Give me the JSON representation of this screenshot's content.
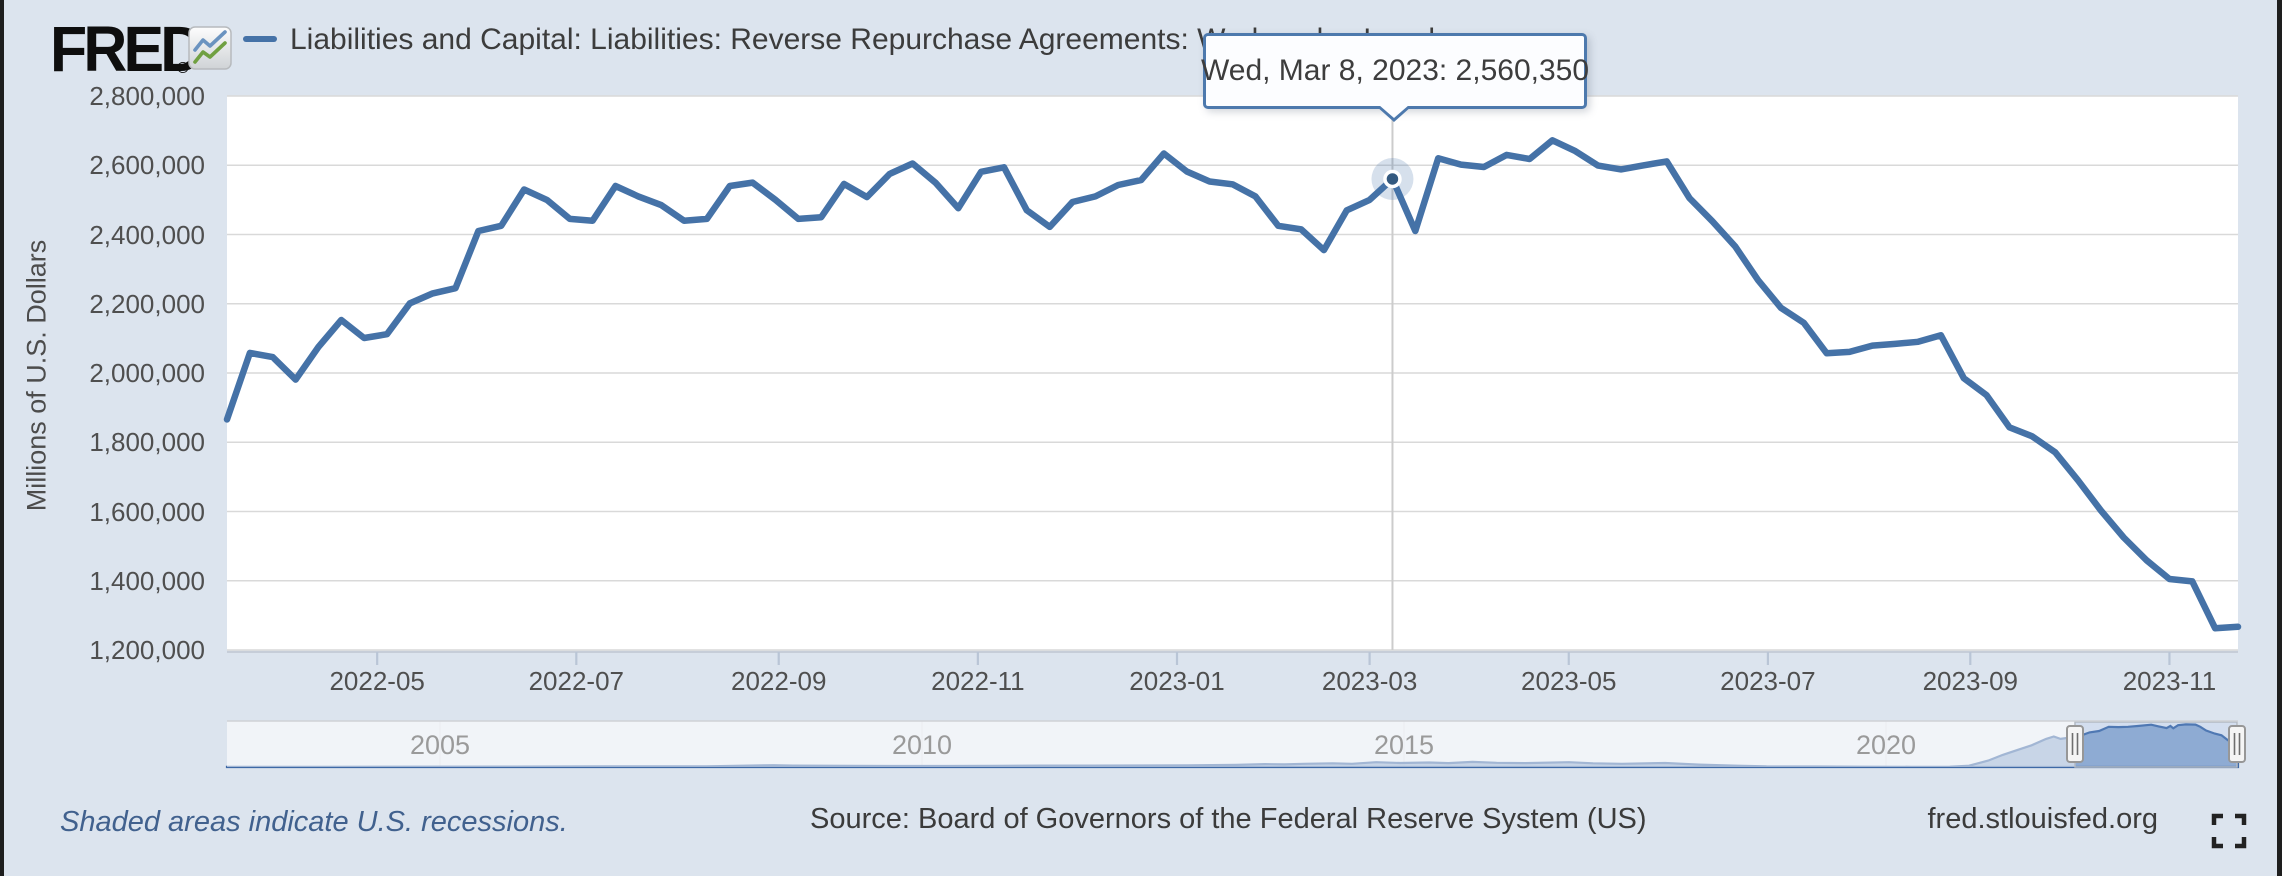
{
  "header": {
    "logo_text": "FRED",
    "logo_registered": "®",
    "series_legend": {
      "label": "Liabilities and Capital: Liabilities: Reverse Repurchase Agreements: Wednesday Level",
      "color": "#4572a7"
    }
  },
  "tooltip": {
    "label": "Wed, Mar 8, 2023: 2,560,350",
    "date": "Wed, Mar 8, 2023",
    "value": "2,560,350"
  },
  "axes": {
    "y_title": "Millions of U.S. Dollars",
    "y_ticks": [
      "2,800,000",
      "2,600,000",
      "2,400,000",
      "2,200,000",
      "2,000,000",
      "1,800,000",
      "1,600,000",
      "1,400,000",
      "1,200,000"
    ],
    "x_ticks": [
      "2022-05",
      "2022-07",
      "2022-09",
      "2022-11",
      "2023-01",
      "2023-03",
      "2023-05",
      "2023-07",
      "2023-09",
      "2023-11"
    ],
    "navigator_years": [
      "2005",
      "2010",
      "2015",
      "2020"
    ]
  },
  "footer": {
    "recessions_note": "Shaded areas indicate U.S. recessions.",
    "source": "Source: Board of Governors of the Federal Reserve System (US)",
    "site": "fred.stlouisfed.org"
  },
  "colors": {
    "page_background": "#dce4ee",
    "plot_background": "#ffffff",
    "series_line": "#4572a7",
    "gridline": "#d9d9d9",
    "axis_line": "#c6cdd8",
    "tick_mark": "#b9c5d6",
    "crosshair": "#cccccc",
    "tooltip_border": "#4d79ad",
    "navigator_area": "#7b9cc7",
    "navigator_line": "#3e69a6",
    "selection_tint": "rgba(132,167,220,0.25)",
    "handle_fill": "#f5f5f5",
    "recessions_note_text": "#41618e"
  },
  "chart_data": {
    "type": "line",
    "title": "Liabilities and Capital: Liabilities: Reverse Repurchase Agreements: Wednesday Level",
    "ylabel": "Millions of U.S. Dollars",
    "ylim": [
      1200000,
      2800000
    ],
    "grid": true,
    "frequency": "weekly, Wednesday level",
    "units": "Millions of U.S. Dollars",
    "selected_point": {
      "date": "2023-03-08",
      "label": "Wed, Mar 8, 2023",
      "value": 2560350
    },
    "series": [
      {
        "name": "Liabilities and Capital: Liabilities: Reverse Repurchase Agreements: Wednesday Level",
        "dates": [
          "2022-03-16",
          "2022-03-23",
          "2022-03-30",
          "2022-04-06",
          "2022-04-13",
          "2022-04-20",
          "2022-04-27",
          "2022-05-04",
          "2022-05-11",
          "2022-05-18",
          "2022-05-25",
          "2022-06-01",
          "2022-06-08",
          "2022-06-15",
          "2022-06-22",
          "2022-06-29",
          "2022-07-06",
          "2022-07-13",
          "2022-07-20",
          "2022-07-27",
          "2022-08-03",
          "2022-08-10",
          "2022-08-17",
          "2022-08-24",
          "2022-08-31",
          "2022-09-07",
          "2022-09-14",
          "2022-09-21",
          "2022-09-28",
          "2022-10-05",
          "2022-10-12",
          "2022-10-19",
          "2022-10-26",
          "2022-11-02",
          "2022-11-09",
          "2022-11-16",
          "2022-11-23",
          "2022-11-30",
          "2022-12-07",
          "2022-12-14",
          "2022-12-21",
          "2022-12-28",
          "2023-01-04",
          "2023-01-11",
          "2023-01-18",
          "2023-01-25",
          "2023-02-01",
          "2023-02-08",
          "2023-02-15",
          "2023-02-22",
          "2023-03-01",
          "2023-03-08",
          "2023-03-15",
          "2023-03-22",
          "2023-03-29",
          "2023-04-05",
          "2023-04-12",
          "2023-04-19",
          "2023-04-26",
          "2023-05-03",
          "2023-05-10",
          "2023-05-17",
          "2023-05-24",
          "2023-05-31",
          "2023-06-07",
          "2023-06-14",
          "2023-06-21",
          "2023-06-28",
          "2023-07-05",
          "2023-07-12",
          "2023-07-19",
          "2023-07-26",
          "2023-08-02",
          "2023-08-09",
          "2023-08-16",
          "2023-08-23",
          "2023-08-30",
          "2023-09-06",
          "2023-09-13",
          "2023-09-20",
          "2023-09-27",
          "2023-10-04",
          "2023-10-11",
          "2023-10-18",
          "2023-10-25",
          "2023-11-01",
          "2023-11-08",
          "2023-11-15",
          "2023-11-22"
        ],
        "values": [
          1866000,
          2058000,
          2046000,
          1981000,
          2075000,
          2153000,
          2101000,
          2112000,
          2201000,
          2230000,
          2245000,
          2410000,
          2425000,
          2530000,
          2500000,
          2445000,
          2440000,
          2540000,
          2510000,
          2485000,
          2440000,
          2445000,
          2540000,
          2550000,
          2500000,
          2445000,
          2450000,
          2546000,
          2508000,
          2575000,
          2605000,
          2550000,
          2476000,
          2581000,
          2594000,
          2470000,
          2422000,
          2494000,
          2510000,
          2543000,
          2557000,
          2634000,
          2582000,
          2553000,
          2545000,
          2510000,
          2425000,
          2415000,
          2355000,
          2470000,
          2500000,
          2560350,
          2410000,
          2620000,
          2602000,
          2595000,
          2630000,
          2618000,
          2672000,
          2641000,
          2599000,
          2588000,
          2600000,
          2611000,
          2505000,
          2438000,
          2365000,
          2268000,
          2188000,
          2145000,
          2057000,
          2061000,
          2079000,
          2084000,
          2090000,
          2109000,
          1985000,
          1936000,
          1843000,
          1817000,
          1771000,
          1690000,
          1603000,
          1525000,
          1459000,
          1405000,
          1398000,
          1263000,
          1267000
        ]
      }
    ],
    "navigator": {
      "type": "area",
      "x_years": [
        2002.7,
        2004,
        2006,
        2007,
        2008,
        2008.7,
        2008.9,
        2009.5,
        2010,
        2010.5,
        2011,
        2011.5,
        2012,
        2012.5,
        2013,
        2013.5,
        2013.8,
        2014,
        2014.2,
        2014.5,
        2014.7,
        2014.95,
        2015.2,
        2015.5,
        2015.7,
        2015.95,
        2016.2,
        2016.5,
        2016.95,
        2017.2,
        2017.5,
        2017.95,
        2018.3,
        2018.7,
        2019,
        2019.5,
        2020,
        2020.5,
        2020.9,
        2021.1,
        2021.3,
        2021.45,
        2021.6,
        2021.75,
        2021.9,
        2021.98,
        2022.05,
        2022.2,
        2022.23,
        2022.27,
        2022.35,
        2022.45,
        2022.55,
        2022.65,
        2022.75,
        2022.85,
        2022.99,
        2023.1,
        2023.15,
        2023.19,
        2023.22,
        2023.27,
        2023.35,
        2023.45,
        2023.5,
        2023.56,
        2023.65,
        2023.72,
        2023.78,
        2023.85,
        2023.92
      ],
      "values": [
        10000,
        15000,
        25000,
        35000,
        45000,
        110000,
        90000,
        70000,
        60000,
        65000,
        75000,
        85000,
        90000,
        95000,
        100000,
        140000,
        180000,
        160000,
        200000,
        230000,
        200000,
        300000,
        250000,
        280000,
        240000,
        320000,
        260000,
        240000,
        300000,
        230000,
        200000,
        250000,
        150000,
        80000,
        40000,
        30000,
        20000,
        15000,
        20000,
        80000,
        400000,
        750000,
        1050000,
        1350000,
        1750000,
        1900000,
        1750000,
        1870000,
        2060000,
        1975000,
        2150000,
        2240000,
        2500000,
        2480000,
        2500000,
        2550000,
        2634000,
        2480000,
        2420000,
        2560000,
        2410000,
        2600000,
        2650000,
        2640000,
        2500000,
        2270000,
        2080000,
        1970000,
        1700000,
        1410000,
        1266000
      ],
      "selected_window": {
        "start_year": 2022.2,
        "end_year": 2023.9
      }
    }
  }
}
